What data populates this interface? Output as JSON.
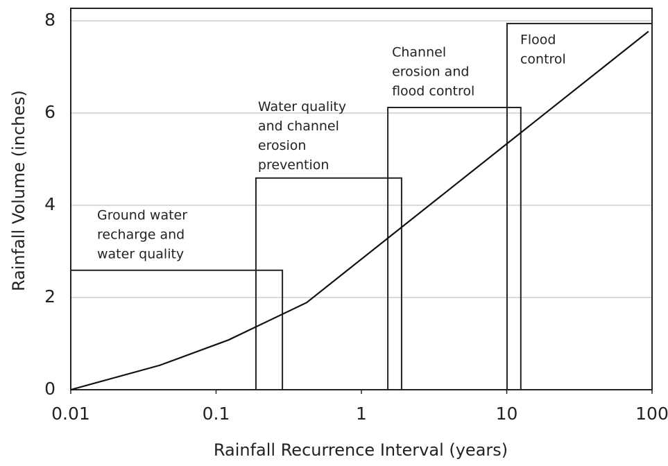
{
  "chart_data": {
    "type": "line",
    "x_label": "Rainfall Recurrence Interval (years)",
    "y_label": "Rainfall Volume (inches)",
    "xscale": "log",
    "xlim": [
      0.01,
      100
    ],
    "xticks": [
      0.01,
      0.1,
      1,
      10,
      100
    ],
    "ylim": [
      0,
      8.27
    ],
    "yticks": [
      0,
      2,
      4,
      6,
      8
    ],
    "grid": true,
    "series": [
      {
        "color": "#111111",
        "x": [
          0.01,
          0.041,
          0.122,
          0.42,
          94.6
        ],
        "values": [
          0,
          0.53,
          1.08,
          1.89,
          7.77
        ]
      }
    ],
    "ranges": [
      {
        "label": [
          "Ground water",
          "recharge and",
          "water quality"
        ],
        "x0": 0.01,
        "x1": 0.286,
        "value": 2.59
      },
      {
        "label": [
          "Water quality",
          "and channel",
          "erosion",
          "prevention"
        ],
        "x0": 0.188,
        "x1": 1.89,
        "value": 4.59
      },
      {
        "label": [
          "Channel",
          "erosion and",
          "flood control"
        ],
        "x0": 1.52,
        "x1": 12.5,
        "value": 6.12
      },
      {
        "label": [
          "Flood",
          "control"
        ],
        "x0": 10.05,
        "x1": 100,
        "value": 7.94
      }
    ]
  }
}
